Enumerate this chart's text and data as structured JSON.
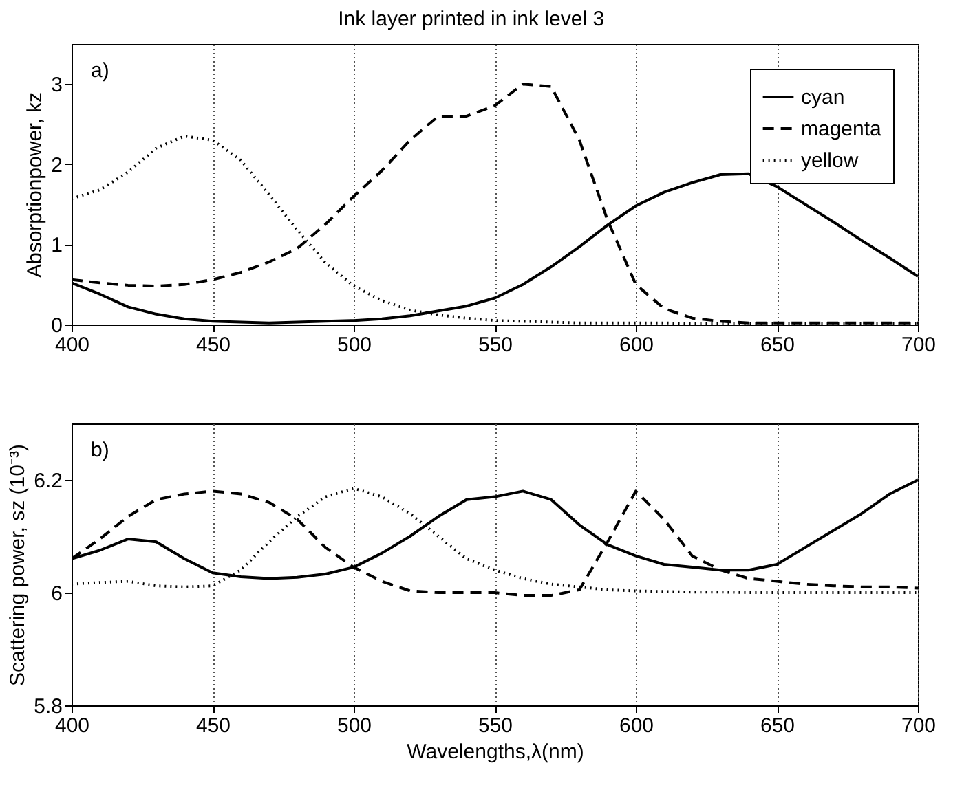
{
  "chart_data": [
    {
      "type": "line",
      "title": "Ink layer printed in ink level 3",
      "ylabel": "Absorptionpower, kz",
      "annotations": [
        "a)"
      ],
      "x": [
        400,
        410,
        420,
        430,
        440,
        450,
        460,
        470,
        480,
        490,
        500,
        510,
        520,
        530,
        540,
        550,
        560,
        570,
        580,
        590,
        600,
        610,
        620,
        630,
        640,
        650,
        660,
        670,
        680,
        690,
        700
      ],
      "series": [
        {
          "name": "cyan",
          "color": "#000000",
          "line_style": "solid",
          "values": [
            0.52,
            0.38,
            0.22,
            0.13,
            0.07,
            0.04,
            0.03,
            0.02,
            0.03,
            0.04,
            0.05,
            0.07,
            0.11,
            0.17,
            0.23,
            0.33,
            0.5,
            0.72,
            0.97,
            1.24,
            1.48,
            1.65,
            1.77,
            1.87,
            1.88,
            1.72,
            1.5,
            1.28,
            1.05,
            0.83,
            0.6
          ]
        },
        {
          "name": "magenta",
          "color": "#000000",
          "line_style": "dashed",
          "values": [
            0.56,
            0.52,
            0.49,
            0.48,
            0.5,
            0.56,
            0.65,
            0.78,
            0.95,
            1.25,
            1.6,
            1.92,
            2.3,
            2.6,
            2.6,
            2.73,
            3.0,
            2.97,
            2.3,
            1.3,
            0.5,
            0.2,
            0.08,
            0.04,
            0.02,
            0.02,
            0.02,
            0.02,
            0.02,
            0.02,
            0.02
          ]
        },
        {
          "name": "yellow",
          "color": "#000000",
          "line_style": "dotted",
          "values": [
            1.57,
            1.68,
            1.9,
            2.2,
            2.35,
            2.3,
            2.05,
            1.62,
            1.18,
            0.77,
            0.48,
            0.3,
            0.18,
            0.12,
            0.08,
            0.05,
            0.04,
            0.03,
            0.02,
            0.02,
            0.02,
            0.02,
            0.01,
            0.01,
            0.01,
            0.01,
            0.01,
            0.01,
            0.01,
            0.01,
            0.01
          ]
        }
      ],
      "xlim": [
        400,
        700
      ],
      "xticks": [
        400,
        450,
        500,
        550,
        600,
        650,
        700
      ],
      "ylim": [
        0,
        3.5
      ],
      "yticks": [
        0,
        1,
        2,
        3
      ],
      "grid": "x",
      "legend": "top right"
    },
    {
      "type": "line",
      "xlabel": "Wavelengths,λ(nm)",
      "ylabel": "Scattering power, sz (10⁻³)",
      "annotations": [
        "b)"
      ],
      "x": [
        400,
        410,
        420,
        430,
        440,
        450,
        460,
        470,
        480,
        490,
        500,
        510,
        520,
        530,
        540,
        550,
        560,
        570,
        580,
        590,
        600,
        610,
        620,
        630,
        640,
        650,
        660,
        670,
        680,
        690,
        700
      ],
      "series": [
        {
          "color": "#000000",
          "line_style": "solid",
          "values": [
            6.06,
            6.075,
            6.095,
            6.09,
            6.06,
            6.035,
            6.028,
            6.025,
            6.027,
            6.033,
            6.045,
            6.07,
            6.1,
            6.135,
            6.165,
            6.17,
            6.18,
            6.165,
            6.12,
            6.085,
            6.065,
            6.05,
            6.045,
            6.04,
            6.04,
            6.05,
            6.08,
            6.11,
            6.14,
            6.175,
            6.2
          ]
        },
        {
          "color": "#000000",
          "line_style": "dashed",
          "values": [
            6.06,
            6.095,
            6.135,
            6.165,
            6.175,
            6.18,
            6.175,
            6.16,
            6.13,
            6.08,
            6.045,
            6.02,
            6.003,
            6.0,
            6.0,
            6.0,
            5.995,
            5.995,
            6.005,
            6.09,
            6.18,
            6.13,
            6.065,
            6.04,
            6.025,
            6.02,
            6.015,
            6.012,
            6.01,
            6.01,
            6.008
          ]
        },
        {
          "color": "#000000",
          "line_style": "dotted",
          "values": [
            6.015,
            6.018,
            6.02,
            6.012,
            6.01,
            6.012,
            6.04,
            6.09,
            6.135,
            6.17,
            6.185,
            6.17,
            6.14,
            6.1,
            6.06,
            6.04,
            6.025,
            6.015,
            6.01,
            6.005,
            6.003,
            6.002,
            6.001,
            6.001,
            6.0,
            6.0,
            6.0,
            6.0,
            6.0,
            6.0,
            6.0
          ]
        }
      ],
      "xlim": [
        400,
        700
      ],
      "xticks": [
        400,
        450,
        500,
        550,
        600,
        650,
        700
      ],
      "ylim": [
        5.8,
        6.3
      ],
      "yticks": [
        5.8,
        6,
        6.2
      ],
      "grid": "x"
    }
  ]
}
